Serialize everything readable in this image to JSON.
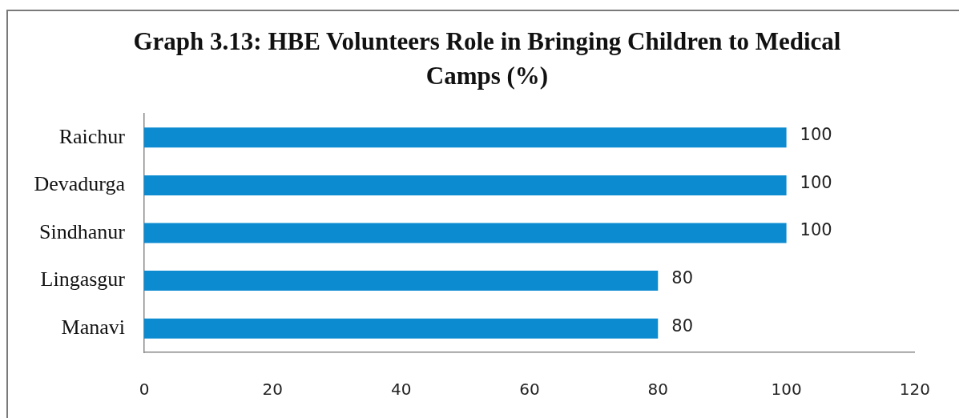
{
  "chart_data": {
    "type": "bar",
    "orientation": "horizontal",
    "title": "Graph 3.13: HBE Volunteers Role in Bringing Children to Medical Camps (%)",
    "categories": [
      "Raichur",
      "Devadurga",
      "Sindhanur",
      "Lingasgur",
      "Manavi"
    ],
    "values": [
      100,
      100,
      100,
      80,
      80
    ],
    "color": "#0d8bd1",
    "xlim": [
      0,
      120
    ],
    "xticks": [
      0,
      20,
      40,
      60,
      80,
      100,
      120
    ],
    "data_labels": true
  }
}
